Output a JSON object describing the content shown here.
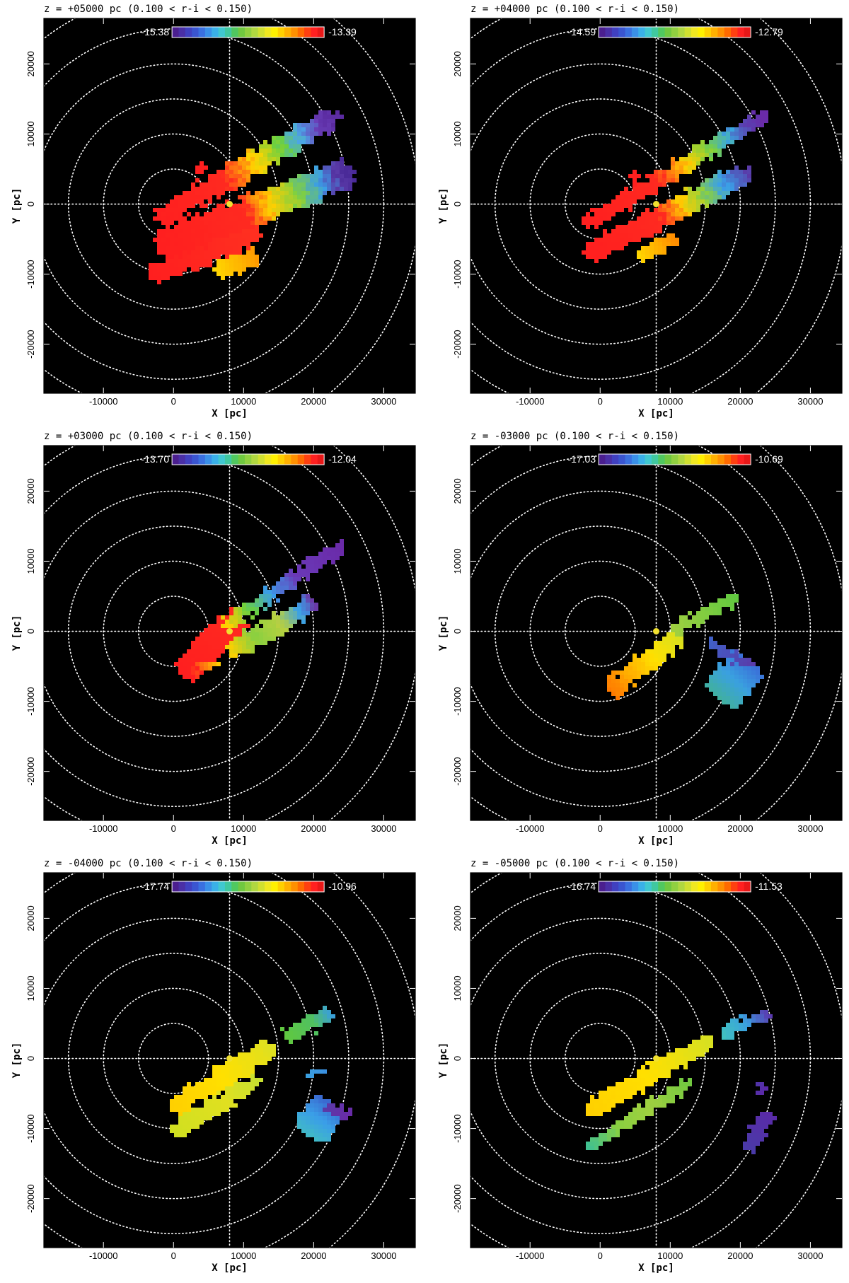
{
  "chart_data": [
    {
      "type": "heatmap",
      "title": "z = +05000 pc (0.100 < r-i < 0.150)",
      "xlabel": "X [pc]",
      "ylabel": "Y [pc]",
      "xlim": [
        -18500,
        34500
      ],
      "ylim": [
        -27000,
        26500
      ],
      "xticks": [
        "-10000",
        "0",
        "10000",
        "20000",
        "30000"
      ],
      "yticks": [
        "-20000",
        "-10000",
        "0",
        "10000",
        "20000"
      ],
      "colorbar": {
        "min_label": "-15.38",
        "max_label": "-13.39",
        "placement": "top"
      },
      "sun": [
        8000,
        0
      ],
      "circles_radii": [
        5000,
        10000,
        15000,
        20000,
        25000,
        30000,
        35000
      ],
      "regions": [
        {
          "x0": -3000,
          "y0": -10000,
          "x1": 12000,
          "y1": -4000,
          "w": 3000,
          "ramp": [
            [
              0,
              "#ff1f1f"
            ],
            [
              1,
              "#ff3020"
            ]
          ]
        },
        {
          "x0": 6000,
          "y0": -9500,
          "x1": 12000,
          "y1": -7500,
          "w": 2500,
          "ramp": [
            [
              0,
              "#ffd700"
            ],
            [
              1,
              "#ff9a00"
            ]
          ]
        },
        {
          "x0": -2000,
          "y0": -2000,
          "x1": 23000,
          "y1": 12500,
          "w": 3000,
          "ramp": [
            [
              0,
              "#ff1f1f"
            ],
            [
              0.38,
              "#ff2a20"
            ],
            [
              0.55,
              "#ffd500"
            ],
            [
              0.7,
              "#6ad040"
            ],
            [
              0.8,
              "#4aa8e8"
            ],
            [
              0.9,
              "#6a3fb8"
            ],
            [
              1,
              "#5a2aa0"
            ]
          ]
        },
        {
          "x0": -1500,
          "y0": -6000,
          "x1": 25000,
          "y1": 4500,
          "w": 4200,
          "ramp": [
            [
              0,
              "#ff1f1f"
            ],
            [
              0.45,
              "#ff2a20"
            ],
            [
              0.58,
              "#ffcf00"
            ],
            [
              0.72,
              "#80d040"
            ],
            [
              0.85,
              "#3a9ee8"
            ],
            [
              0.93,
              "#5a3aa8"
            ],
            [
              1,
              "#4a2a98"
            ]
          ]
        },
        {
          "x0": 3500,
          "y0": 4500,
          "x1": 4500,
          "y1": 5800,
          "w": 1200,
          "ramp": [
            [
              0,
              "#ff1f1f"
            ],
            [
              1,
              "#ff1f1f"
            ]
          ]
        }
      ]
    },
    {
      "type": "heatmap",
      "title": "z = +04000 pc (0.100 < r-i < 0.150)",
      "xlabel": "X [pc]",
      "ylabel": "Y [pc]",
      "xlim": [
        -18500,
        34500
      ],
      "ylim": [
        -27000,
        26500
      ],
      "xticks": [
        "-10000",
        "0",
        "10000",
        "20000",
        "30000"
      ],
      "yticks": [
        "-20000",
        "-10000",
        "0",
        "10000",
        "20000"
      ],
      "colorbar": {
        "min_label": "-14.59",
        "max_label": "-12.79",
        "placement": "top"
      },
      "sun": [
        8000,
        0
      ],
      "circles_radii": [
        5000,
        10000,
        15000,
        20000,
        25000,
        30000,
        35000
      ],
      "regions": [
        {
          "x0": -1500,
          "y0": -2500,
          "x1": 23500,
          "y1": 12500,
          "w": 2200,
          "ramp": [
            [
              0,
              "#ff1f1f"
            ],
            [
              0.4,
              "#ff2a20"
            ],
            [
              0.55,
              "#ffd000"
            ],
            [
              0.68,
              "#7ad040"
            ],
            [
              0.8,
              "#3aa8e0"
            ],
            [
              0.9,
              "#5a3fb0"
            ],
            [
              1,
              "#6a2aa8"
            ]
          ]
        },
        {
          "x0": -1500,
          "y0": -7000,
          "x1": 21000,
          "y1": 4500,
          "w": 3000,
          "ramp": [
            [
              0,
              "#ff1f1f"
            ],
            [
              0.45,
              "#ff2a20"
            ],
            [
              0.6,
              "#ffcf00"
            ],
            [
              0.72,
              "#8ad040"
            ],
            [
              0.85,
              "#3aa0e8"
            ],
            [
              1,
              "#5a3aa8"
            ]
          ]
        },
        {
          "x0": 5500,
          "y0": -7500,
          "x1": 11000,
          "y1": -5000,
          "w": 2000,
          "ramp": [
            [
              0,
              "#ffd700"
            ],
            [
              1,
              "#ff8a00"
            ]
          ]
        },
        {
          "x0": 4500,
          "y0": 3000,
          "x1": 5500,
          "y1": 4500,
          "w": 1200,
          "ramp": [
            [
              0,
              "#ff1f1f"
            ],
            [
              1,
              "#ff1f1f"
            ]
          ]
        }
      ]
    },
    {
      "type": "heatmap",
      "title": "z = +03000 pc (0.100 < r-i < 0.150)",
      "xlabel": "X [pc]",
      "ylabel": "Y [pc]",
      "xlim": [
        -18500,
        34500
      ],
      "ylim": [
        -27000,
        26500
      ],
      "xticks": [
        "-10000",
        "0",
        "10000",
        "20000",
        "30000"
      ],
      "yticks": [
        "-20000",
        "-10000",
        "0",
        "10000",
        "20000"
      ],
      "colorbar": {
        "min_label": "-13.70",
        "max_label": "-12.04",
        "placement": "top"
      },
      "sun": [
        8000,
        0
      ],
      "circles_radii": [
        5000,
        10000,
        15000,
        20000,
        25000,
        30000,
        35000
      ],
      "regions": [
        {
          "x0": 1500,
          "y0": -6000,
          "x1": 9500,
          "y1": 2000,
          "w": 4000,
          "ramp": [
            [
              0,
              "#ff1f1f"
            ],
            [
              1,
              "#ff2a20"
            ]
          ]
        },
        {
          "x0": 7500,
          "y0": 1000,
          "x1": 24000,
          "y1": 12000,
          "w": 1800,
          "ramp": [
            [
              0,
              "#ffcf00"
            ],
            [
              0.2,
              "#6ad040"
            ],
            [
              0.4,
              "#3a9ee8"
            ],
            [
              0.6,
              "#6a3ab8"
            ],
            [
              1,
              "#6a2aa8"
            ]
          ]
        },
        {
          "x0": 8000,
          "y0": -3000,
          "x1": 20000,
          "y1": 4000,
          "w": 2500,
          "ramp": [
            [
              0,
              "#ffd000"
            ],
            [
              0.3,
              "#8ad040"
            ],
            [
              0.6,
              "#b8d040"
            ],
            [
              0.85,
              "#3aa0e8"
            ],
            [
              1,
              "#6a3aa8"
            ]
          ]
        },
        {
          "x0": 2500,
          "y0": -6000,
          "x1": 6500,
          "y1": -4500,
          "w": 1200,
          "ramp": [
            [
              0,
              "#ff1f1f"
            ],
            [
              1,
              "#ffd000"
            ]
          ]
        }
      ]
    },
    {
      "type": "heatmap",
      "title": "z = -03000 pc (0.100 < r-i < 0.150)",
      "xlabel": "X [pc]",
      "ylabel": "Y [pc]",
      "xlim": [
        -18500,
        34500
      ],
      "ylim": [
        -27000,
        26500
      ],
      "xticks": [
        "-10000",
        "0",
        "10000",
        "20000",
        "30000"
      ],
      "yticks": [
        "-20000",
        "-10000",
        "0",
        "10000",
        "20000"
      ],
      "colorbar": {
        "min_label": "-17.03",
        "max_label": "-10.69",
        "placement": "top"
      },
      "sun": [
        8000,
        0
      ],
      "circles_radii": [
        5000,
        10000,
        15000,
        20000,
        25000,
        30000,
        35000
      ],
      "regions": [
        {
          "x0": 1500,
          "y0": -8500,
          "x1": 11500,
          "y1": -500,
          "w": 2600,
          "ramp": [
            [
              0,
              "#ff7a00"
            ],
            [
              0.3,
              "#ffb000"
            ],
            [
              0.6,
              "#ffe000"
            ],
            [
              1,
              "#d8e020"
            ]
          ]
        },
        {
          "x0": 10500,
          "y0": 0,
          "x1": 19500,
          "y1": 5000,
          "w": 1800,
          "ramp": [
            [
              0,
              "#a0d040"
            ],
            [
              1,
              "#60c840"
            ]
          ]
        },
        {
          "x0": 17000,
          "y0": -9500,
          "x1": 21500,
          "y1": -4500,
          "w": 5500,
          "ramp": [
            [
              0,
              "#40b0a0"
            ],
            [
              0.5,
              "#3aa0e0"
            ],
            [
              1,
              "#3a70d8"
            ]
          ]
        },
        {
          "x0": 15500,
          "y0": -1500,
          "x1": 22000,
          "y1": -5000,
          "w": 1400,
          "ramp": [
            [
              0,
              "#4060c8"
            ],
            [
              1,
              "#5a3aa8"
            ]
          ]
        }
      ]
    },
    {
      "type": "heatmap",
      "title": "z = -04000 pc (0.100 < r-i < 0.150)",
      "xlabel": "X [pc]",
      "ylabel": "Y [pc]",
      "xlim": [
        -18500,
        34500
      ],
      "ylim": [
        -27000,
        26500
      ],
      "xticks": [
        "-10000",
        "0",
        "10000",
        "20000",
        "30000"
      ],
      "yticks": [
        "-20000",
        "-10000",
        "0",
        "10000",
        "20000"
      ],
      "colorbar": {
        "min_label": "-17.74",
        "max_label": "-10.96",
        "placement": "top"
      },
      "sun": [
        8000,
        0
      ],
      "circles_radii": [
        5000,
        10000,
        15000,
        20000,
        25000,
        30000,
        35000
      ],
      "regions": [
        {
          "x0": 0,
          "y0": -7000,
          "x1": 14000,
          "y1": 1500,
          "w": 2800,
          "ramp": [
            [
              0,
              "#ffd000"
            ],
            [
              0.5,
              "#ffe000"
            ],
            [
              1,
              "#e0e020"
            ]
          ]
        },
        {
          "x0": 0,
          "y0": -10500,
          "x1": 12000,
          "y1": -3000,
          "w": 2200,
          "ramp": [
            [
              0,
              "#d0e020"
            ],
            [
              0.6,
              "#e0e020"
            ],
            [
              1,
              "#c8e030"
            ]
          ]
        },
        {
          "x0": 16000,
          "y0": 3000,
          "x1": 22500,
          "y1": 6500,
          "w": 2000,
          "ramp": [
            [
              0,
              "#60c840"
            ],
            [
              0.6,
              "#50c060"
            ],
            [
              1,
              "#3aa0d8"
            ]
          ]
        },
        {
          "x0": 19000,
          "y0": -2500,
          "x1": 21500,
          "y1": -1500,
          "w": 1300,
          "ramp": [
            [
              0,
              "#3aa0e0"
            ],
            [
              1,
              "#3a90e0"
            ]
          ]
        },
        {
          "x0": 19500,
          "y0": -11000,
          "x1": 22500,
          "y1": -6500,
          "w": 5000,
          "ramp": [
            [
              0,
              "#40b8c8"
            ],
            [
              0.5,
              "#3a9ee8"
            ],
            [
              1,
              "#3a6ad0"
            ]
          ]
        },
        {
          "x0": 22000,
          "y0": -6500,
          "x1": 25000,
          "y1": -8500,
          "w": 1500,
          "ramp": [
            [
              0,
              "#5a3aa8"
            ],
            [
              1,
              "#6a2aa8"
            ]
          ]
        }
      ]
    },
    {
      "type": "heatmap",
      "title": "z = -05000 pc (0.100 < r-i < 0.150)",
      "xlabel": "X [pc]",
      "ylabel": "Y [pc]",
      "xlim": [
        -18500,
        34500
      ],
      "ylim": [
        -27000,
        26500
      ],
      "xticks": [
        "-10000",
        "0",
        "10000",
        "20000",
        "30000"
      ],
      "yticks": [
        "-20000",
        "-10000",
        "0",
        "10000",
        "20000"
      ],
      "colorbar": {
        "min_label": "-16.74",
        "max_label": "-11.53",
        "placement": "top"
      },
      "sun": [
        8000,
        0
      ],
      "circles_radii": [
        5000,
        10000,
        15000,
        20000,
        25000,
        30000,
        35000
      ],
      "regions": [
        {
          "x0": -1500,
          "y0": -7500,
          "x1": 15500,
          "y1": 2500,
          "w": 2600,
          "ramp": [
            [
              0,
              "#ffd000"
            ],
            [
              0.5,
              "#ffe000"
            ],
            [
              1,
              "#d8e020"
            ]
          ]
        },
        {
          "x0": -1500,
          "y0": -12500,
          "x1": 13000,
          "y1": -3500,
          "w": 1600,
          "ramp": [
            [
              0,
              "#40c090"
            ],
            [
              0.3,
              "#8ad040"
            ],
            [
              0.6,
              "#a0d040"
            ],
            [
              1,
              "#70c840"
            ]
          ]
        },
        {
          "x0": 17500,
          "y0": 3500,
          "x1": 24000,
          "y1": 6500,
          "w": 1700,
          "ramp": [
            [
              0,
              "#40c0c0"
            ],
            [
              0.5,
              "#3aa0e0"
            ],
            [
              1,
              "#5a3ab0"
            ]
          ]
        },
        {
          "x0": 21000,
          "y0": -13000,
          "x1": 24000,
          "y1": -7500,
          "w": 2000,
          "ramp": [
            [
              0,
              "#4a3aa8"
            ],
            [
              1,
              "#5a2aa8"
            ]
          ]
        },
        {
          "x0": 21500,
          "y0": -3000,
          "x1": 23500,
          "y1": -4500,
          "w": 1000,
          "ramp": [
            [
              0,
              "#4a3aa8"
            ],
            [
              1,
              "#5a2aa8"
            ]
          ]
        }
      ]
    }
  ]
}
